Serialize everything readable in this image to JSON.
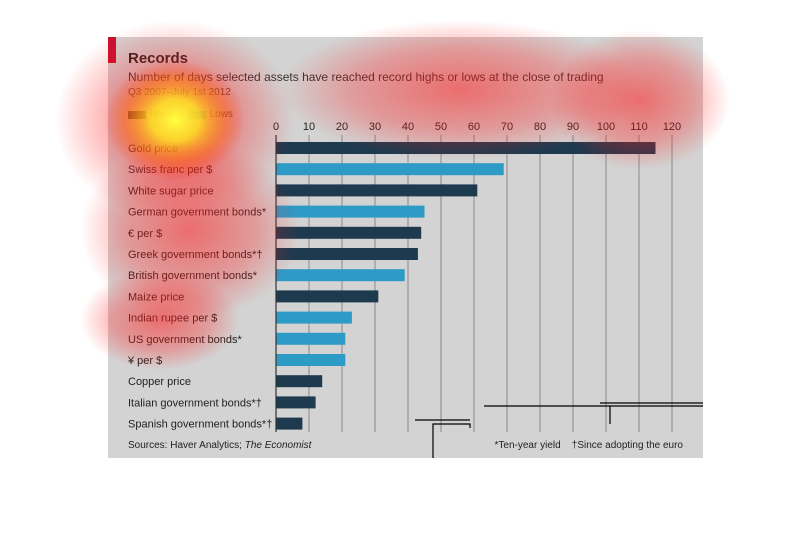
{
  "chart_data": {
    "type": "bar",
    "orientation": "horizontal",
    "title": "Records",
    "subtitle": "Number of days selected assets have reached record highs or lows at the close of trading",
    "period": "Q3 2007–July 1st 2012",
    "legend": [
      {
        "name": "Highs",
        "color": "#1d3a4f"
      },
      {
        "name": "Lows",
        "color": "#2e9ac6"
      }
    ],
    "categories": [
      "Gold price",
      "Swiss franc per $",
      "White sugar price",
      "German government bonds*",
      "€ per $",
      "Greek government bonds*†",
      "British government bonds*",
      "Maize price",
      "Indian rupee per $",
      "US government bonds*",
      "¥ per $",
      "Copper price",
      "Italian government bonds*†",
      "Spanish government bonds*†"
    ],
    "values": [
      115,
      69,
      61,
      45,
      44,
      43,
      39,
      31,
      23,
      21,
      21,
      14,
      12,
      8
    ],
    "kinds": [
      "highs",
      "lows",
      "highs",
      "lows",
      "highs",
      "highs",
      "lows",
      "highs",
      "lows",
      "lows",
      "lows",
      "highs",
      "highs",
      "highs"
    ],
    "xlim": [
      0,
      120
    ],
    "xticks": [
      0,
      10,
      20,
      30,
      40,
      50,
      60,
      70,
      80,
      90,
      100,
      110,
      120
    ],
    "xaxis_position": "top",
    "grid": true
  },
  "colors": {
    "highs": "#1d3a4f",
    "lows": "#2e9ac6",
    "accent": "#c8102e",
    "panel": "#d3d3d3"
  },
  "footer": {
    "source_prefix": "Sources: Haver Analytics; ",
    "source_italic": "The Economist",
    "note_yield": "*Ten-year yield",
    "note_euro": "†Since adopting the euro"
  }
}
